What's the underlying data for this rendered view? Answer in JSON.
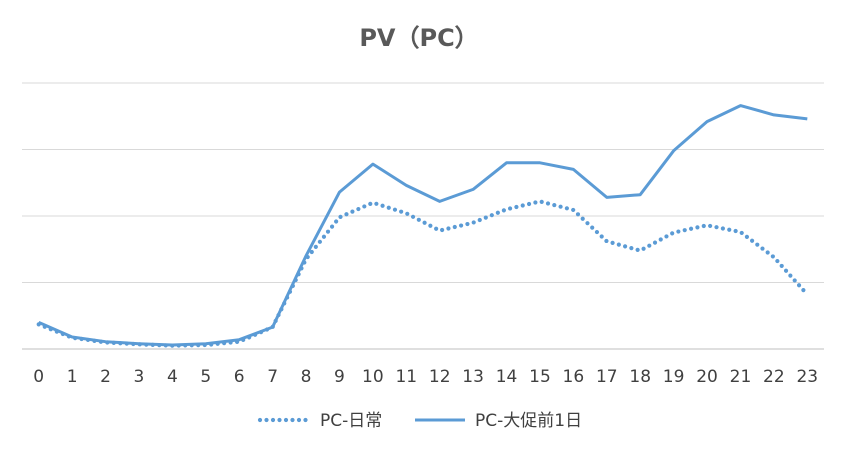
{
  "chart_data": {
    "type": "line",
    "title": "PV（PC）",
    "x": [
      "0",
      "1",
      "2",
      "3",
      "4",
      "5",
      "6",
      "7",
      "8",
      "9",
      "10",
      "11",
      "12",
      "13",
      "14",
      "15",
      "16",
      "17",
      "18",
      "19",
      "20",
      "21",
      "22",
      "23"
    ],
    "ylim": [
      0,
      4
    ],
    "y_gridlines": [
      0,
      1,
      2,
      3,
      4
    ],
    "y_tick_labels_shown": false,
    "grid": true,
    "legend_position": "bottom",
    "colors": {
      "line": "#5b9bd5"
    },
    "series": [
      {
        "name": "PC-日常",
        "style": "dotted",
        "values": [
          0.37,
          0.17,
          0.1,
          0.07,
          0.05,
          0.06,
          0.11,
          0.33,
          1.35,
          1.98,
          2.2,
          2.04,
          1.78,
          1.9,
          2.1,
          2.22,
          2.09,
          1.62,
          1.48,
          1.75,
          1.86,
          1.76,
          1.38,
          0.82
        ]
      },
      {
        "name": "PC-大促前1日",
        "style": "solid",
        "values": [
          0.4,
          0.18,
          0.11,
          0.08,
          0.06,
          0.08,
          0.14,
          0.33,
          1.4,
          2.36,
          2.78,
          2.46,
          2.22,
          2.4,
          2.8,
          2.8,
          2.7,
          2.28,
          2.32,
          2.98,
          3.42,
          3.66,
          3.52,
          3.46
        ]
      }
    ]
  }
}
